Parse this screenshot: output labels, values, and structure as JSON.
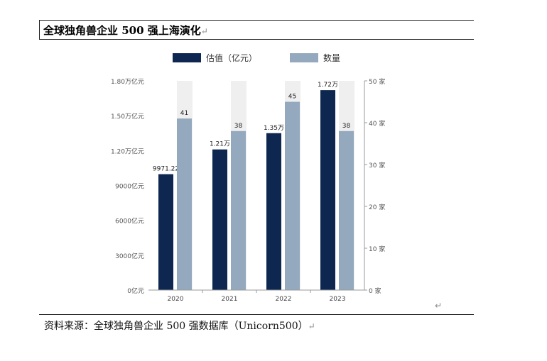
{
  "title": "全球独角兽企业 500 强上海演化",
  "return_mark": "↵",
  "source": "资料来源：全球独角兽企业 500 强数据库（Unicorn500）",
  "colors": {
    "valuation": "#0d2750",
    "count": "#94a9bd",
    "band": "#efefef",
    "axis": "#999999",
    "text": "#333333"
  },
  "chart_data": {
    "type": "bar",
    "categories": [
      "2020",
      "2021",
      "2022",
      "2023"
    ],
    "series": [
      {
        "name": "估值（亿元）",
        "axis": "left",
        "values": [
          9971.22,
          12100,
          13500,
          17200
        ],
        "labels": [
          "9971.22",
          "1.21万",
          "1.35万",
          "1.72万"
        ]
      },
      {
        "name": "数量",
        "axis": "right",
        "values": [
          41,
          38,
          45,
          38
        ],
        "labels": [
          "41",
          "38",
          "45",
          "38"
        ]
      }
    ],
    "left_axis": {
      "ylim": [
        0,
        18000
      ],
      "ticks": [
        0,
        3000,
        6000,
        9000,
        12000,
        15000,
        18000
      ],
      "tick_labels": [
        "0亿元",
        "3000亿元",
        "6000亿元",
        "9000亿元",
        "1.20万亿元",
        "1.50万亿元",
        "1.80万亿元"
      ]
    },
    "right_axis": {
      "ylim": [
        0,
        50
      ],
      "ticks": [
        0,
        10,
        20,
        30,
        40,
        50
      ],
      "tick_labels": [
        "0 家",
        "10 家",
        "20 家",
        "30 家",
        "40 家",
        "50 家"
      ]
    },
    "legend": "top-center",
    "grid": false
  }
}
